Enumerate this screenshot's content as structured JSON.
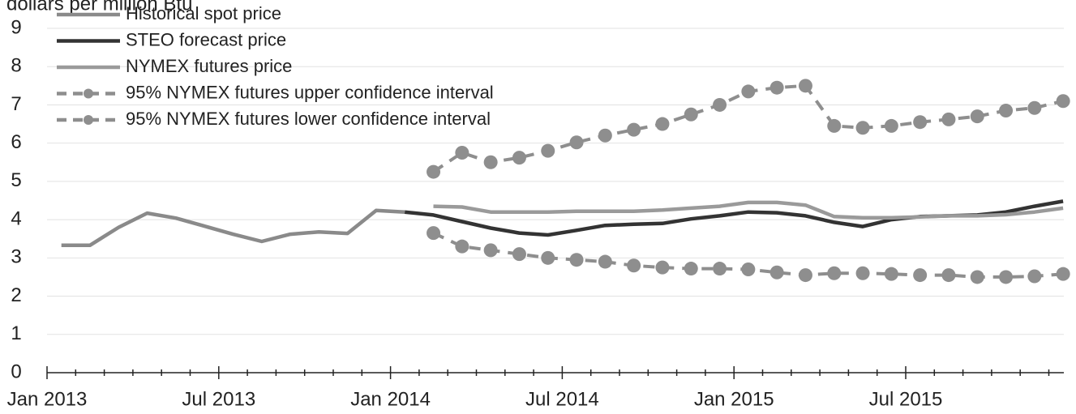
{
  "chart_data": {
    "type": "line",
    "title": "dollars per million Btu",
    "categories": [
      "Jan 2013",
      null,
      null,
      null,
      null,
      null,
      "Jul 2013",
      null,
      null,
      null,
      null,
      null,
      "Jan 2014",
      null,
      null,
      null,
      null,
      null,
      "Jul 2014",
      null,
      null,
      null,
      null,
      null,
      "Jan 2015",
      null,
      null,
      null,
      null,
      null,
      "Jul 2015",
      null,
      null,
      null,
      null,
      null
    ],
    "series": [
      {
        "name": "Historical spot price",
        "color": "#8a8a8a",
        "marker": false,
        "dashed": false,
        "values": [
          3.33,
          3.33,
          3.8,
          4.17,
          4.04,
          3.83,
          3.62,
          3.43,
          3.62,
          3.68,
          3.64,
          4.24,
          4.2,
          null,
          null,
          null,
          null,
          null,
          null,
          null,
          null,
          null,
          null,
          null,
          null,
          null,
          null,
          null,
          null,
          null,
          null,
          null,
          null,
          null,
          null,
          null
        ]
      },
      {
        "name": "STEO forecast price",
        "color": "#333333",
        "marker": false,
        "dashed": false,
        "values": [
          null,
          null,
          null,
          null,
          null,
          null,
          null,
          null,
          null,
          null,
          null,
          null,
          4.2,
          4.12,
          3.95,
          3.78,
          3.65,
          3.6,
          3.72,
          3.85,
          3.88,
          3.9,
          4.02,
          4.1,
          4.2,
          4.18,
          4.1,
          3.93,
          3.82,
          4.0,
          4.08,
          4.1,
          4.12,
          4.2,
          4.35,
          4.48
        ]
      },
      {
        "name": "NYMEX futures price",
        "color": "#9a9a9a",
        "marker": false,
        "dashed": false,
        "values": [
          null,
          null,
          null,
          null,
          null,
          null,
          null,
          null,
          null,
          null,
          null,
          null,
          null,
          4.35,
          4.33,
          4.2,
          4.2,
          4.2,
          4.22,
          4.22,
          4.22,
          4.25,
          4.3,
          4.35,
          4.45,
          4.45,
          4.38,
          4.08,
          4.05,
          4.05,
          4.07,
          4.1,
          4.1,
          4.13,
          4.2,
          4.3
        ]
      },
      {
        "name": "95% NYMEX futures upper confidence interval",
        "color": "#8e8e8e",
        "marker": true,
        "dashed": true,
        "values": [
          null,
          null,
          null,
          null,
          null,
          null,
          null,
          null,
          null,
          null,
          null,
          null,
          null,
          5.25,
          5.75,
          5.5,
          5.62,
          5.8,
          6.02,
          6.2,
          6.35,
          6.5,
          6.75,
          7.0,
          7.35,
          7.45,
          7.5,
          6.45,
          6.4,
          6.45,
          6.55,
          6.62,
          6.7,
          6.85,
          6.92,
          7.1
        ]
      },
      {
        "name": "95% NYMEX futures lower confidence interval",
        "color": "#8e8e8e",
        "marker": true,
        "dashed": true,
        "values": [
          null,
          null,
          null,
          null,
          null,
          null,
          null,
          null,
          null,
          null,
          null,
          null,
          null,
          3.65,
          3.3,
          3.2,
          3.1,
          3.0,
          2.95,
          2.9,
          2.8,
          2.75,
          2.72,
          2.72,
          2.7,
          2.62,
          2.55,
          2.6,
          2.6,
          2.58,
          2.55,
          2.55,
          2.5,
          2.5,
          2.52,
          2.58
        ]
      }
    ],
    "ylim": [
      0,
      9
    ],
    "yticks": [
      0,
      1,
      2,
      3,
      4,
      5,
      6,
      7,
      8,
      9
    ],
    "grid": true,
    "legend": "top-left"
  }
}
